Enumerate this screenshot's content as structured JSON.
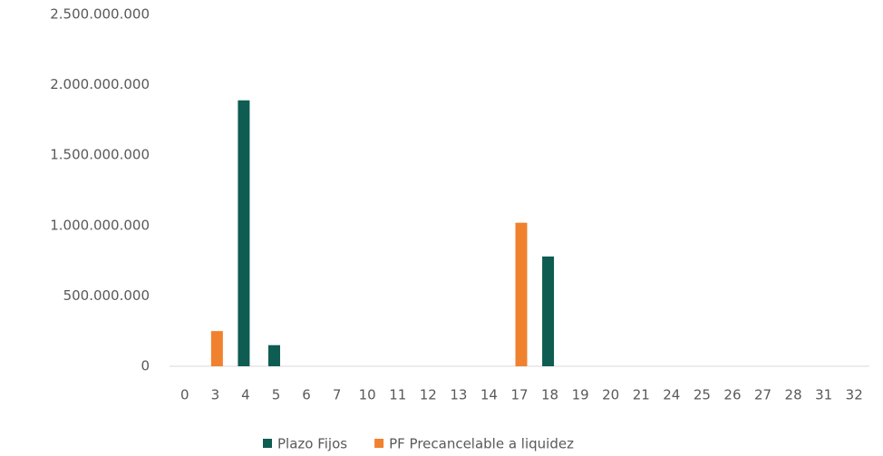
{
  "chart_data": {
    "type": "bar",
    "categories": [
      "0",
      "3",
      "4",
      "5",
      "6",
      "7",
      "10",
      "11",
      "12",
      "13",
      "14",
      "17",
      "18",
      "19",
      "20",
      "21",
      "24",
      "25",
      "26",
      "27",
      "28",
      "31",
      "32"
    ],
    "series": [
      {
        "name": "Plazo Fijos",
        "color": "#0e5c52",
        "values": [
          0,
          0,
          1890000000,
          150000000,
          0,
          0,
          0,
          0,
          0,
          0,
          0,
          0,
          780000000,
          0,
          0,
          0,
          0,
          0,
          0,
          0,
          0,
          0,
          0
        ]
      },
      {
        "name": "PF Precancelable a liquidez",
        "color": "#f0812e",
        "values": [
          0,
          250000000,
          0,
          0,
          0,
          0,
          0,
          0,
          0,
          0,
          0,
          1020000000,
          0,
          0,
          0,
          0,
          0,
          0,
          0,
          0,
          0,
          0,
          0
        ]
      }
    ],
    "ylim": [
      0,
      2500000000
    ],
    "yticks": [
      0,
      {
        "value": 500000000,
        "label": "500.000.000"
      },
      {
        "value": 1000000000,
        "label": "1.000.000.000"
      },
      {
        "value": 1500000000,
        "label": "1.500.000.000"
      },
      {
        "value": 2000000000,
        "label": "2.000.000.000"
      },
      {
        "value": 2500000000,
        "label": "2.500.000.000"
      }
    ],
    "grid": false,
    "legend": "bottom"
  }
}
